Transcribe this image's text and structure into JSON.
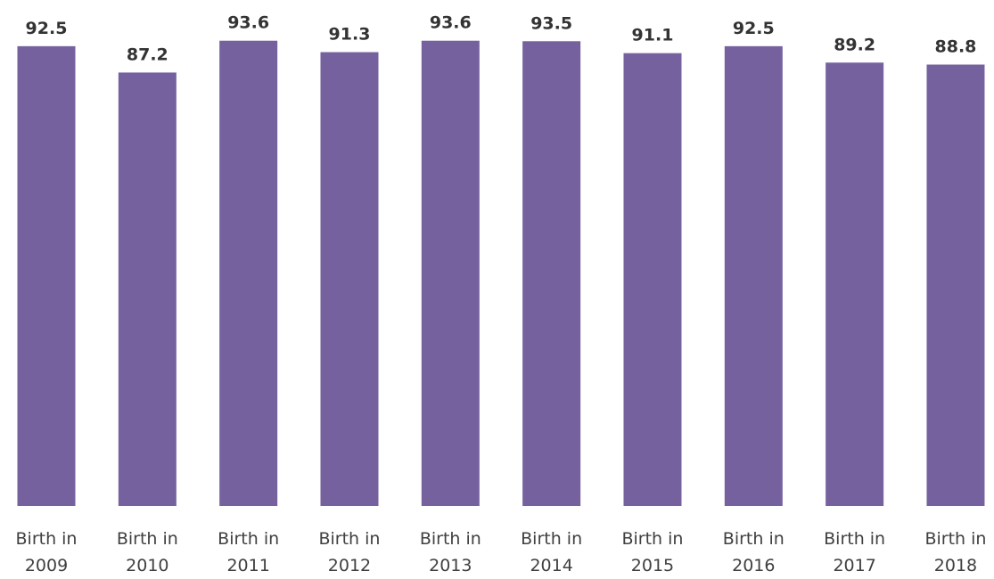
{
  "chart_data": {
    "type": "bar",
    "categories": [
      "Birth in 2009",
      "Birth in 2010",
      "Birth in 2011",
      "Birth in 2012",
      "Birth in 2013",
      "Birth in 2014",
      "Birth in 2015",
      "Birth in 2016",
      "Birth in 2017",
      "Birth in 2018"
    ],
    "values": [
      92.5,
      87.2,
      93.6,
      91.3,
      93.6,
      93.5,
      91.1,
      92.5,
      89.2,
      88.8
    ],
    "color": "#76619f",
    "ylim": [
      0,
      100
    ]
  }
}
